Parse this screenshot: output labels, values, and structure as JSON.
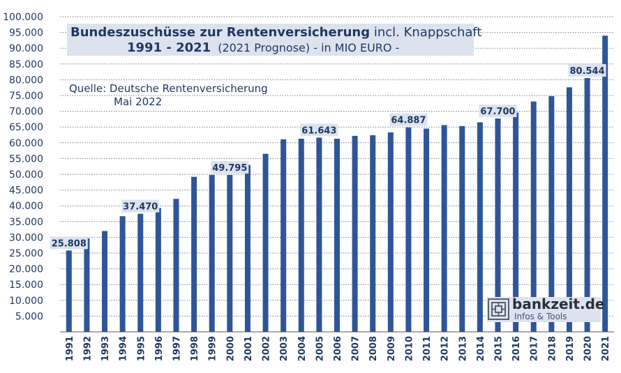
{
  "chart_data": {
    "type": "bar",
    "title_bold": "Bundeszuschüsse zur Rentenversicherung",
    "title_rest": "incl. Knappschaft",
    "subtitle_years": "1991 - 2021",
    "subtitle_rest": "(2021 Prognose)  - in MIO EURO -",
    "source_line1": "Quelle: Deutsche Rentenversicherung",
    "source_line2": "Mai 2022",
    "xlabel": "",
    "ylabel": "",
    "ylim": [
      0,
      100000
    ],
    "y_ticks": [
      "100.000",
      "95.000",
      "90.000",
      "85.000",
      "80.000",
      "75.000",
      "70.000",
      "65.000",
      "60.000",
      "55.000",
      "50.000",
      "45.000",
      "40.000",
      "35.000",
      "30.000",
      "25.000",
      "20.000",
      "15.000",
      "10.000",
      "5.000"
    ],
    "grid": "horizontal dotted",
    "bar_color": "#2e5597",
    "label_bg_color": "#dce3ee",
    "categories": [
      "1991",
      "1992",
      "1993",
      "1994",
      "1995",
      "1996",
      "1997",
      "1998",
      "1999",
      "2000",
      "2001",
      "2002",
      "2003",
      "2004",
      "2005",
      "2006",
      "2007",
      "2008",
      "2009",
      "2010",
      "2011",
      "2012",
      "2013",
      "2014",
      "2015",
      "2016",
      "2017",
      "2018",
      "2019",
      "2020",
      "2021"
    ],
    "values": [
      25808,
      29700,
      32000,
      36700,
      37470,
      39300,
      42200,
      49200,
      49800,
      49795,
      53000,
      56500,
      61100,
      61300,
      61643,
      61300,
      62200,
      62400,
      63300,
      64887,
      64500,
      65600,
      65300,
      66500,
      67700,
      69600,
      73100,
      74800,
      77600,
      80544,
      94000
    ],
    "data_labels": [
      {
        "category": "1991",
        "text": "25.808"
      },
      {
        "category": "1995",
        "text": "37.470"
      },
      {
        "category": "2000",
        "text": "49.795"
      },
      {
        "category": "2005",
        "text": "61.643"
      },
      {
        "category": "2010",
        "text": "64.887"
      },
      {
        "category": "2015",
        "text": "67.700"
      },
      {
        "category": "2020",
        "text": "80.544"
      }
    ]
  },
  "logo": {
    "name": "bankzeit.de",
    "tagline": "Infos & Tools",
    "icon": "bankzeit-logo-icon"
  }
}
